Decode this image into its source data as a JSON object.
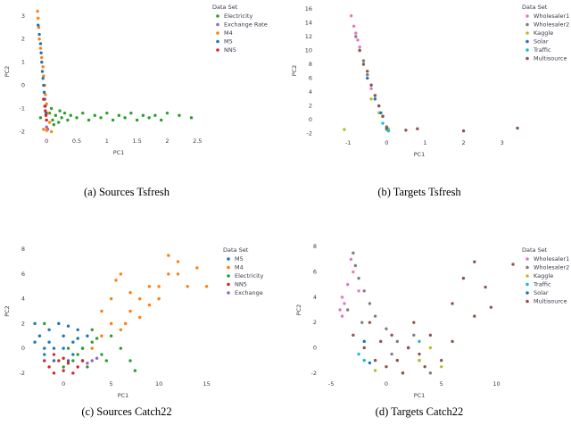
{
  "chart_data": [
    {
      "type": "scatter",
      "caption": "(a) Sources Tsfresh",
      "xlabel": "PC1",
      "ylabel": "PC2",
      "legend_title": "Data Set",
      "legend": "right",
      "xlim": [
        -0.21,
        2.6
      ],
      "ylim": [
        -2.1,
        3.3
      ],
      "xticks": [
        0,
        0.5,
        1,
        1.5,
        2,
        2.5
      ],
      "yticks": [
        -2,
        -1,
        0,
        1,
        2,
        3
      ],
      "series": [
        {
          "name": "Electricity",
          "color": "#2ca02c",
          "x": [
            0.05,
            0.1,
            0.15,
            0.2,
            0.25,
            0.3,
            0.35,
            0.4,
            0.5,
            0.6,
            0.7,
            0.8,
            0.9,
            1.0,
            1.1,
            1.2,
            1.3,
            1.4,
            1.5,
            1.6,
            1.7,
            1.8,
            1.9,
            2.0,
            2.2,
            2.4,
            0.12,
            0.22,
            -0.1,
            0.08
          ],
          "values": [
            -1.2,
            -1.5,
            -1.3,
            -1.6,
            -1.4,
            -1.2,
            -1.5,
            -1.3,
            -1.4,
            -1.2,
            -1.5,
            -1.3,
            -1.4,
            -1.2,
            -1.5,
            -1.3,
            -1.4,
            -1.2,
            -1.5,
            -1.3,
            -1.4,
            -1.3,
            -1.5,
            -1.2,
            -1.3,
            -1.4,
            -1.7,
            -1.1,
            -1.4,
            -1.0
          ]
        },
        {
          "name": "Exchange Rate",
          "color": "#9467bd",
          "x": [
            0.0,
            0.02
          ],
          "values": [
            -1.8,
            -1.9
          ]
        },
        {
          "name": "M4",
          "color": "#ff7f0e",
          "x": [
            -0.15,
            -0.14,
            -0.13,
            -0.12,
            -0.1,
            -0.08,
            -0.06,
            -0.05,
            -0.03,
            -0.02,
            0.0,
            0.02,
            0.05,
            0.08,
            -0.05,
            0.0
          ],
          "values": [
            3.2,
            2.9,
            2.5,
            2.0,
            1.6,
            1.2,
            0.8,
            0.4,
            0.0,
            -0.4,
            -0.8,
            -1.2,
            -1.6,
            -2.0,
            -1.9,
            -1.95
          ]
        },
        {
          "name": "M5",
          "color": "#1f77b4",
          "x": [
            -0.14,
            -0.12,
            -0.1,
            -0.09,
            -0.08,
            -0.07,
            -0.06,
            -0.05,
            -0.04,
            -0.03,
            -0.02,
            -0.01
          ],
          "values": [
            2.6,
            2.2,
            1.8,
            1.4,
            1.0,
            0.6,
            0.3,
            0.0,
            -0.3,
            -0.6,
            -0.9,
            -1.2
          ]
        },
        {
          "name": "NN5",
          "color": "#d62728",
          "x": [
            -0.05,
            -0.03,
            -0.02,
            -0.01,
            0.0
          ],
          "values": [
            -0.6,
            -0.9,
            -1.1,
            -1.3,
            -1.5
          ]
        }
      ]
    },
    {
      "type": "scatter",
      "caption": "(b) Targets Tsfresh",
      "xlabel": "PC1",
      "ylabel": "PC2",
      "legend_title": "Data Set",
      "legend": "right",
      "xlim": [
        -1.7,
        3.4
      ],
      "ylim": [
        -2.3,
        16.5
      ],
      "xticks": [
        -1,
        0,
        1,
        2,
        3
      ],
      "yticks": [
        -2,
        0,
        2,
        4,
        6,
        8,
        10,
        12,
        14,
        16
      ],
      "series": [
        {
          "name": "Wholesaler1",
          "color": "#e377c2",
          "x": [
            -0.92,
            -0.85,
            -0.8,
            -0.75,
            -0.7,
            -0.6,
            -0.5,
            -0.4
          ],
          "values": [
            15,
            13.5,
            12.5,
            11.5,
            10.5,
            8.5,
            6.5,
            4.5
          ]
        },
        {
          "name": "Wholesaler2",
          "color": "#7f7f7f",
          "x": [
            -0.8,
            -0.7,
            -0.6,
            -0.5,
            -0.4,
            -0.3,
            -0.2,
            -0.1,
            0.0
          ],
          "values": [
            12,
            10,
            8.5,
            6.5,
            5,
            3.5,
            2,
            0.5,
            -1
          ]
        },
        {
          "name": "Kaggle",
          "color": "#bcbd22",
          "x": [
            -1.1,
            -0.4,
            -0.2,
            0.05
          ],
          "values": [
            -1.4,
            3,
            1,
            -1.3
          ]
        },
        {
          "name": "Solar",
          "color": "#1f77b4",
          "x": [
            -0.5,
            -0.3,
            -0.15
          ],
          "values": [
            6,
            3,
            1
          ]
        },
        {
          "name": "Traffic",
          "color": "#17becf",
          "x": [
            -0.1,
            0.0,
            0.05
          ],
          "values": [
            -0.5,
            -1.4,
            -1.6
          ]
        },
        {
          "name": "Multisource",
          "color": "#8c564b",
          "x": [
            -0.7,
            -0.6,
            -0.5,
            -0.4,
            -0.3,
            -0.2,
            -0.1,
            0.0,
            0.5,
            0.8,
            2.0,
            3.4
          ],
          "values": [
            10,
            8,
            7,
            5,
            3.5,
            2,
            0.5,
            -1.2,
            -1.5,
            -1.3,
            -1.6,
            -1.2
          ]
        }
      ]
    },
    {
      "type": "scatter",
      "caption": "(c) Sources Catch22",
      "xlabel": "PC1",
      "ylabel": "PC2",
      "legend_title": "Data Set",
      "legend": "right",
      "xlim": [
        -3.1,
        15.6
      ],
      "ylim": [
        -2.3,
        8.3
      ],
      "xticks": [
        0,
        5,
        10,
        15
      ],
      "yticks": [
        -2,
        0,
        2,
        4,
        6,
        8
      ],
      "series": [
        {
          "name": "M5",
          "color": "#1f77b4",
          "x": [
            -3,
            -2.5,
            -2,
            -1.5,
            -1,
            -0.5,
            0,
            0.5,
            1,
            1.5,
            2,
            2.5,
            -2,
            -1,
            0,
            1,
            2,
            -1.5,
            0.5,
            1.5,
            -3
          ],
          "values": [
            0.5,
            1,
            -0.5,
            1.5,
            0,
            2,
            1,
            -1,
            0.5,
            1.5,
            0,
            1,
            0,
            -1,
            0,
            -0.5,
            -1,
            0.5,
            1.8,
            0.8,
            2
          ]
        },
        {
          "name": "M4",
          "color": "#ff7f0e",
          "x": [
            3,
            4,
            5,
            6,
            7,
            8,
            9,
            10,
            11,
            12,
            13,
            14,
            5,
            5.5,
            6,
            8,
            9,
            10,
            11,
            12,
            7,
            15,
            4,
            6.5
          ],
          "values": [
            0,
            1,
            2,
            1.5,
            3,
            4,
            3.5,
            5,
            6,
            7,
            5,
            6.5,
            4,
            5.5,
            6,
            2.5,
            5,
            4,
            7.5,
            6,
            4.5,
            5,
            3,
            2
          ]
        },
        {
          "name": "Electricity",
          "color": "#2ca02c",
          "x": [
            0,
            1,
            2,
            3,
            4,
            5,
            6,
            7,
            1.5,
            2.5,
            3.5,
            4.5,
            0.5,
            3,
            -2,
            7.5
          ],
          "values": [
            -1.5,
            -1,
            0,
            0.5,
            -0.5,
            1,
            0,
            -1,
            -0.5,
            -1.5,
            0.8,
            -1,
            0,
            1.5,
            2,
            -1.8
          ]
        },
        {
          "name": "NN5",
          "color": "#d62728",
          "x": [
            -2,
            -1.5,
            -1,
            -0.5,
            0,
            0.5,
            1,
            1.5,
            2,
            -1,
            0
          ],
          "values": [
            -1,
            -1.5,
            -2,
            -1,
            -1.8,
            -1.2,
            -2,
            -1.5,
            -1,
            -0.5,
            -0.8
          ]
        },
        {
          "name": "Exchange",
          "color": "#9467bd",
          "x": [
            3,
            3.5,
            2.5
          ],
          "values": [
            -1,
            -0.8,
            -1.2
          ]
        }
      ]
    },
    {
      "type": "scatter",
      "caption": "(d) Targets Catch22",
      "xlabel": "PC1",
      "ylabel": "PC2",
      "legend_title": "Data Set",
      "legend": "right",
      "xlim": [
        -5.5,
        11.5
      ],
      "ylim": [
        -2.3,
        8.3
      ],
      "xticks": [
        -5,
        0,
        5,
        10
      ],
      "yticks": [
        -2,
        0,
        2,
        4,
        6,
        8
      ],
      "series": [
        {
          "name": "Wholesaler1",
          "color": "#e377c2",
          "x": [
            -4,
            -3.5,
            -3,
            -4.2,
            -3.8,
            -2.5,
            -3.2,
            -4
          ],
          "values": [
            4,
            5,
            6,
            3,
            3.5,
            4.5,
            7,
            2.5
          ]
        },
        {
          "name": "Wholesaler2",
          "color": "#7f7f7f",
          "x": [
            -3,
            -2.8,
            -2.5,
            -2,
            -1.5,
            -1,
            0,
            1,
            2,
            3,
            4,
            -3.5,
            -2.2,
            0.5,
            2.5
          ],
          "values": [
            7.5,
            6.5,
            5.5,
            4.5,
            3.5,
            2.5,
            1.5,
            0.5,
            0,
            -1,
            -2,
            3,
            2,
            -0.5,
            1
          ]
        },
        {
          "name": "Kaggle",
          "color": "#bcbd22",
          "x": [
            3,
            5,
            4,
            -1,
            1.5
          ],
          "values": [
            -1,
            -1.5,
            0,
            -1.8,
            -2
          ]
        },
        {
          "name": "Traffic",
          "color": "#17becf",
          "x": [
            -2,
            2,
            -2.5,
            3
          ],
          "values": [
            -1,
            0,
            -0.5,
            0.5
          ]
        },
        {
          "name": "Solar",
          "color": "#1f77b4",
          "x": [
            -2,
            -1.5
          ],
          "values": [
            0.5,
            -1.2
          ]
        },
        {
          "name": "Multisource",
          "color": "#8c564b",
          "x": [
            -3,
            -2,
            -1,
            0,
            1,
            2,
            3,
            4,
            5,
            6,
            -1.5,
            0.5,
            1.5,
            2.5,
            -0.5,
            3.5,
            7,
            8,
            9,
            11.5,
            6,
            8,
            9.5
          ],
          "values": [
            1,
            0,
            -1,
            -1.5,
            -1,
            0,
            -0.5,
            1,
            -1,
            0.5,
            2,
            1,
            -2,
            2,
            0.5,
            -1.5,
            5.5,
            6.8,
            4.8,
            6.6,
            3.5,
            2.5,
            3.2
          ]
        }
      ]
    }
  ]
}
